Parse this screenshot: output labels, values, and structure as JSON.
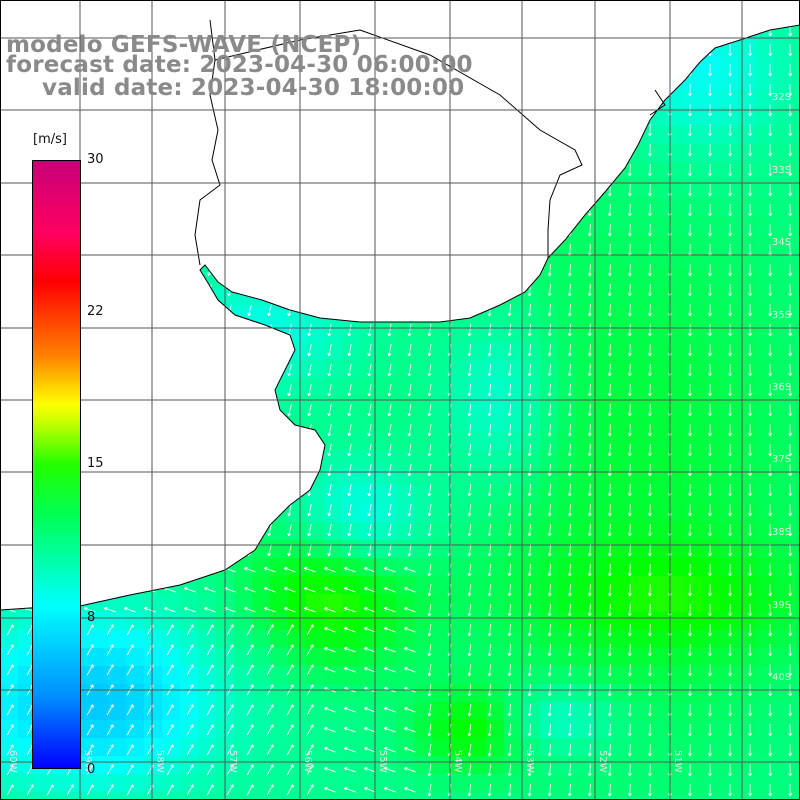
{
  "header": {
    "title_line1": "modelo GEFS-WAVE (NCEP)",
    "title_line2": "forecast date: 2023-04-30 06:00:00",
    "title_line3": "valid date: 2023-04-30 18:00:00"
  },
  "colorbar": {
    "unit": "[m/s]",
    "ticks": [
      "30",
      "22",
      "15",
      "8",
      "0"
    ],
    "tick_values": [
      30,
      22,
      15,
      8,
      0
    ],
    "range": [
      0,
      30
    ],
    "colors": [
      "#0000ff",
      "#0090ff",
      "#00ffff",
      "#00ff50",
      "#22ff00",
      "#ffff00",
      "#ff8000",
      "#ff0000",
      "#c80078"
    ]
  },
  "map": {
    "variable": "wind speed with direction arrows",
    "latitude_labels": [
      "32S",
      "33S",
      "34S",
      "35S",
      "36S",
      "37S",
      "38S",
      "39S",
      "40S"
    ],
    "longitude_labels": [
      "60W",
      "59W",
      "58W",
      "57W",
      "56W",
      "55W",
      "54W",
      "53W",
      "52W",
      "51W"
    ],
    "land_color": "#ffffff",
    "grid_color": "#555555",
    "arrow_color": "#ffffff",
    "coast_color": "#000000"
  }
}
